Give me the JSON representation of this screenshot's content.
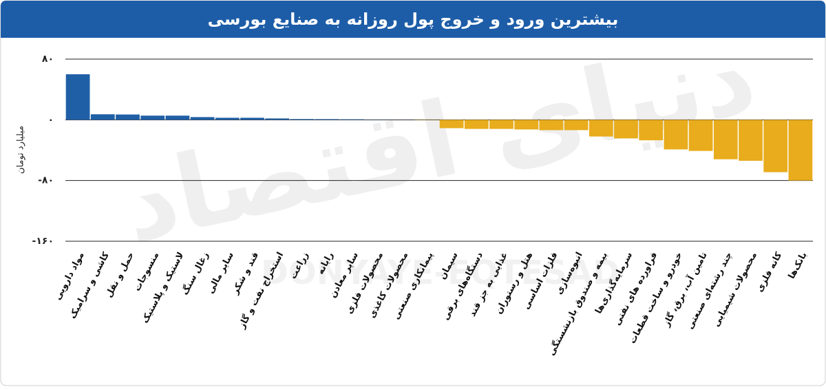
{
  "chart_data": {
    "type": "bar",
    "title": "بیشترین ورود و خروج پول روزانه به صنایع بورسی",
    "y_label": "میلیارد تومان",
    "watermark": "دنیای اقتصاد",
    "watermark_latin": "DONYAYE-EQTESAD",
    "categories": [
      "مواد دارویی",
      "کاشی و سرامیک",
      "حمل و نقل",
      "منسوجات",
      "لاستیک و پلاستیک",
      "زغال سنگ",
      "سایر مالی",
      "قند و شکر",
      "استخراج نفت و گاز",
      "زراعت",
      "رایانه",
      "سایر معادن",
      "محصولات فلزی",
      "محصولات کاغذی",
      "پیمانکاری صنعتی",
      "سیمان",
      "دستگاه‌های برقی",
      "غذایی به جز قند",
      "هتل و رستوران",
      "فلزات اساسی",
      "انبوه‌سازی",
      "بیمه و صندوق بازنشستگی",
      "سرمایه‌گذاری‌ها",
      "فراورده های نفتی",
      "خودرو و ساخت قطعات",
      "تامین آب، برق، گاز",
      "چند رشته‌ای صنعتی",
      "محصولات شیمیایی",
      "کانه فلزی",
      "بانک‌ها"
    ],
    "values": [
      60,
      7.3,
      7,
      5.5,
      5.5,
      3.6,
      2.7,
      2.7,
      1.8,
      1,
      0.9,
      0.7,
      0.2,
      0.1,
      -0.3,
      -11,
      -12,
      -12,
      -12.7,
      -13.6,
      -13.6,
      -22,
      -24.5,
      -27,
      -39,
      -41,
      -52,
      -54,
      -69,
      -80
    ],
    "color_positive": "#1f5fa6",
    "color_negative": "#e8ac1c",
    "ylim": [
      -160,
      80
    ],
    "yticks": [
      {
        "value": 80,
        "label": "۸۰"
      },
      {
        "value": 0,
        "label": "۰"
      },
      {
        "value": -80,
        "label": "-۸۰"
      },
      {
        "value": -160,
        "label": "-۱۶۰"
      }
    ],
    "grid": true
  }
}
